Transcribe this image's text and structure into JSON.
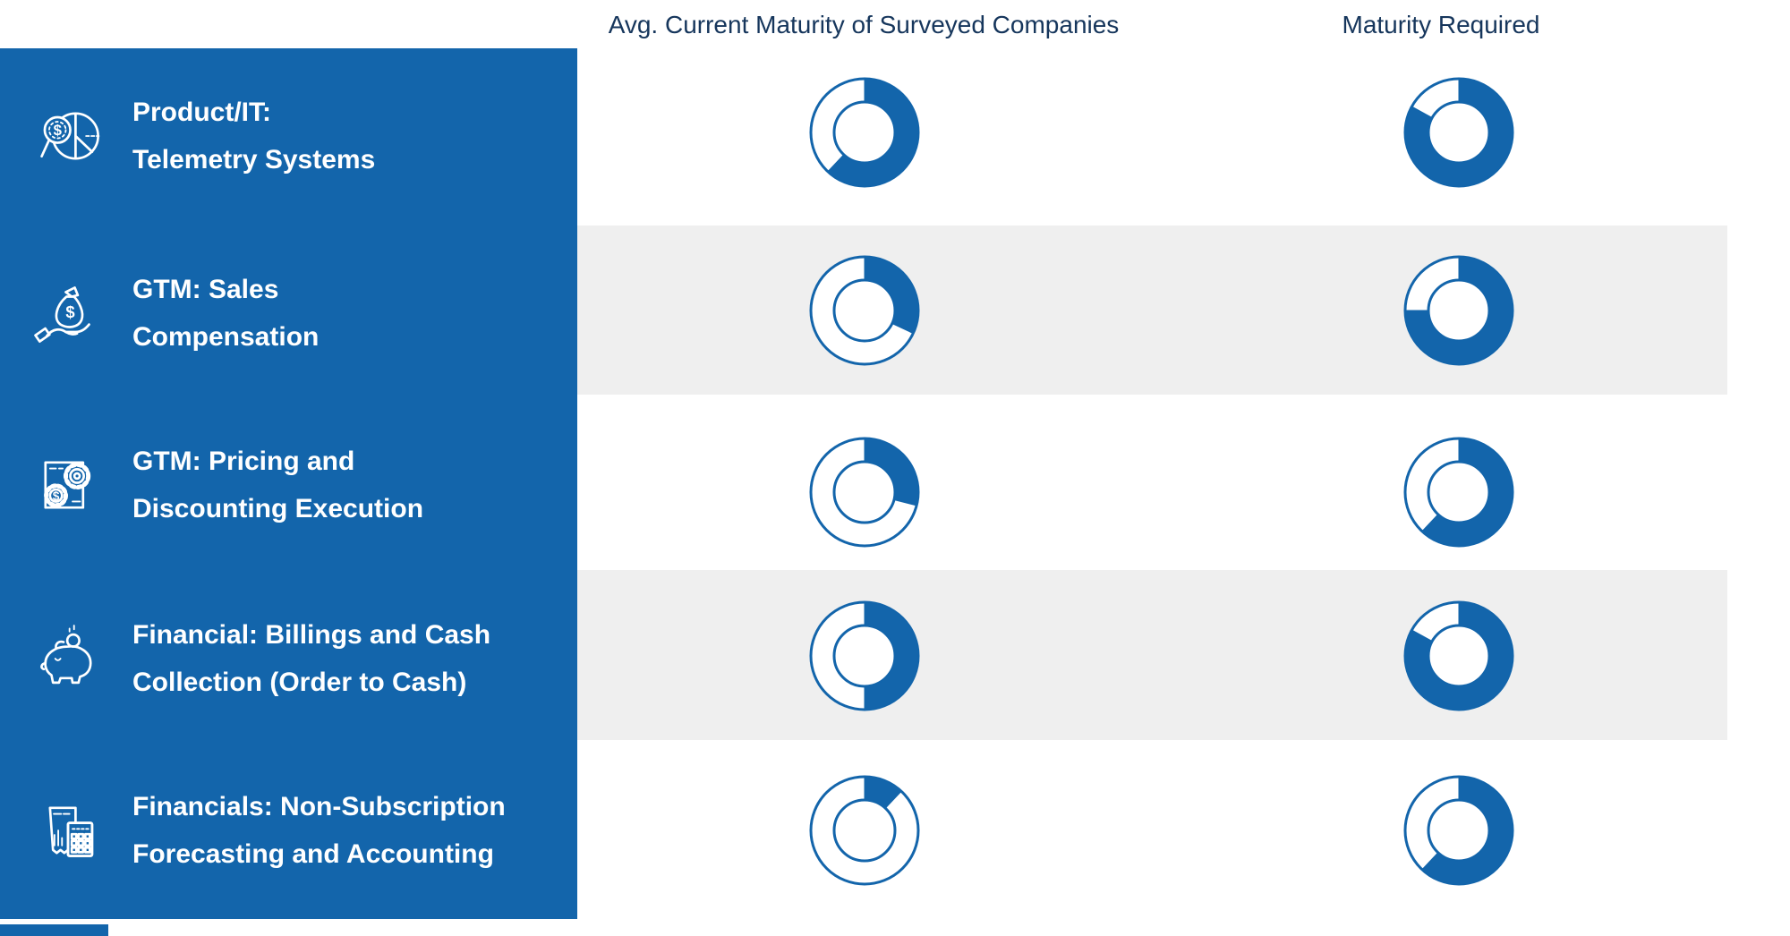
{
  "header": {
    "col1": "Avg. Current Maturity of Surveyed Companies",
    "col2": "Maturity Required"
  },
  "colors": {
    "brand_blue": "#1365AB",
    "header_navy": "#16365C",
    "stripe_gray": "#EFEFEF",
    "donut_empty": "#FFFFFF"
  },
  "sidebar": {
    "items": [
      {
        "icon": "pie-magnifier-dollar-icon",
        "line1": "Product/IT:",
        "line2": "Telemetry Systems"
      },
      {
        "icon": "hand-money-bag-icon",
        "line1": "GTM: Sales",
        "line2": "Compensation"
      },
      {
        "icon": "document-gears-dollar-icon",
        "line1": "GTM: Pricing and",
        "line2": "Discounting Execution"
      },
      {
        "icon": "piggy-bank-coin-icon",
        "line1": "Financial: Billings and Cash",
        "line2": "Collection (Order to Cash)"
      },
      {
        "icon": "receipt-calculator-icon",
        "line1": "Financials: Non-Subscription",
        "line2": "Forecasting and Accounting"
      }
    ]
  },
  "chart_data": {
    "type": "pie",
    "subtype": "donut-progress-matrix",
    "columns": [
      "Avg. Current Maturity of Surveyed Companies",
      "Maturity Required"
    ],
    "categories": [
      "Product/IT: Telemetry Systems",
      "GTM: Sales Compensation",
      "GTM: Pricing and Discounting Execution",
      "Financial: Billings and Cash Collection (Order to Cash)",
      "Financials: Non-Subscription Forecasting and Accounting"
    ],
    "series": [
      {
        "name": "Avg. Current Maturity of Surveyed Companies",
        "values_pct": [
          62,
          32,
          29,
          50,
          12
        ]
      },
      {
        "name": "Maturity Required",
        "values_pct": [
          83,
          75,
          62,
          83,
          62
        ]
      }
    ],
    "donut_style": {
      "start_angle_deg": 0,
      "direction": "clockwise",
      "filled_color": "#1365AB",
      "empty_color": "#FFFFFF",
      "outline_color": "#1365AB",
      "inner_radius_ratio": 0.56,
      "legend": "none",
      "grid": "off"
    }
  }
}
